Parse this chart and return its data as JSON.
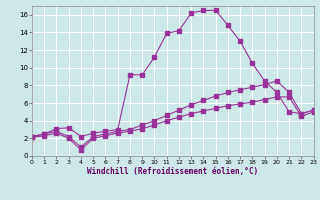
{
  "xlabel": "Windchill (Refroidissement éolien,°C)",
  "bg_color": "#cce8e8",
  "grid_color": "#ffffff",
  "line_color": "#993399",
  "xlim": [
    0,
    23
  ],
  "ylim": [
    0,
    17
  ],
  "xticks": [
    0,
    1,
    2,
    3,
    4,
    5,
    6,
    7,
    8,
    9,
    10,
    11,
    12,
    13,
    14,
    15,
    16,
    17,
    18,
    19,
    20,
    21,
    22,
    23
  ],
  "yticks": [
    0,
    2,
    4,
    6,
    8,
    10,
    12,
    14,
    16
  ],
  "series": [
    {
      "x": [
        0,
        1,
        2,
        3,
        4,
        5,
        6,
        7,
        8,
        9,
        10,
        11,
        12,
        13,
        14,
        15,
        16,
        17,
        18,
        19,
        20,
        21,
        22,
        23
      ],
      "y": [
        2.2,
        2.5,
        3.1,
        3.2,
        2.2,
        2.6,
        2.8,
        3.0,
        9.2,
        9.2,
        11.2,
        13.9,
        14.2,
        16.2,
        16.5,
        16.5,
        14.8,
        13.0,
        10.5,
        8.5,
        7.2,
        5.0,
        4.8,
        5.2
      ]
    },
    {
      "x": [
        0,
        1,
        2,
        3,
        4,
        5,
        6,
        7,
        8,
        9,
        10,
        11,
        12,
        13,
        14,
        15,
        16,
        17,
        18,
        19,
        20,
        21,
        22,
        23
      ],
      "y": [
        2.2,
        2.5,
        2.8,
        2.2,
        1.0,
        2.2,
        2.5,
        2.8,
        3.0,
        3.5,
        4.0,
        4.6,
        5.2,
        5.8,
        6.3,
        6.8,
        7.2,
        7.5,
        7.8,
        8.1,
        8.5,
        7.2,
        4.8,
        5.2
      ]
    },
    {
      "x": [
        0,
        1,
        2,
        3,
        4,
        5,
        6,
        7,
        8,
        9,
        10,
        11,
        12,
        13,
        14,
        15,
        16,
        17,
        18,
        19,
        20,
        21,
        22,
        23
      ],
      "y": [
        2.1,
        2.3,
        2.6,
        2.0,
        0.7,
        2.0,
        2.3,
        2.6,
        2.8,
        3.1,
        3.5,
        4.0,
        4.4,
        4.8,
        5.1,
        5.4,
        5.7,
        5.9,
        6.1,
        6.4,
        6.7,
        6.7,
        4.5,
        5.0
      ]
    }
  ]
}
